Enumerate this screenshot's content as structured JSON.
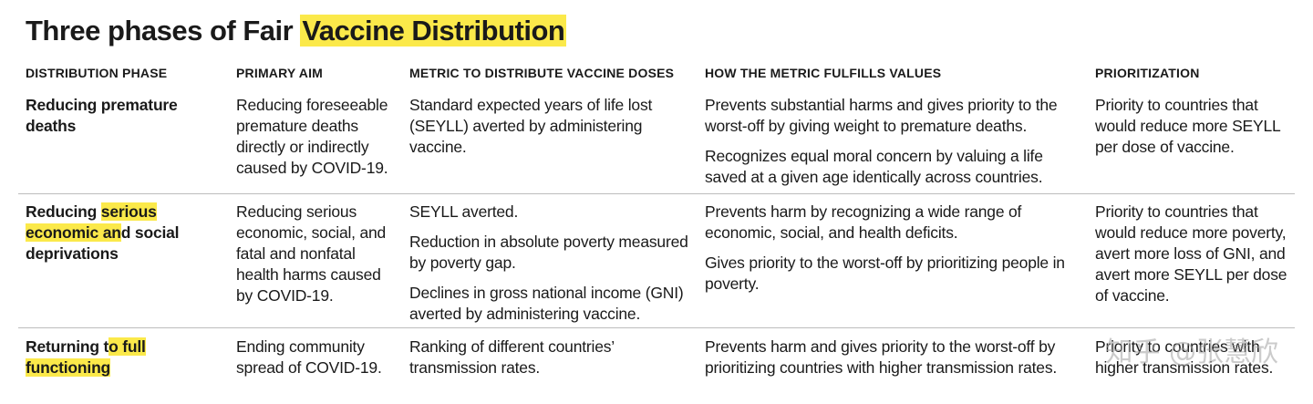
{
  "title": {
    "prefix": "Three phases of Fair ",
    "highlight": "Vaccine Distribution"
  },
  "headers": [
    "DISTRIBUTION PHASE",
    "PRIMARY AIM",
    "METRIC TO DISTRIBUTE VACCINE DOSES",
    "HOW THE METRIC FULFILLS VALUES",
    "PRIORITIZATION"
  ],
  "rows": [
    {
      "phase_parts": [
        "Reducing premature deaths"
      ],
      "aim": "Reducing foreseeable premature deaths directly or indirectly caused by COVID-19.",
      "metric": [
        "Standard expected years of life lost (SEYLL) averted by administering vaccine."
      ],
      "values": [
        "Prevents substantial harms and gives priority to the worst-off by giving weight to premature deaths.",
        "Recognizes equal moral concern by valuing a life saved at a given age identically across countries."
      ],
      "prioritization": "Priority to countries that would reduce more SEYLL per dose of vaccine."
    },
    {
      "phase_parts": [
        "Reducing ",
        "serious economic an",
        "d social deprivations"
      ],
      "aim": "Reducing serious economic, social, and fatal and nonfatal health harms caused by COVID-19.",
      "metric": [
        "SEYLL averted.",
        "Reduction in absolute poverty measured by poverty gap.",
        "Declines in gross national income (GNI) averted by administering vaccine."
      ],
      "values": [
        "Prevents harm by recognizing a wide range of economic, social, and health deficits.",
        "Gives priority to the worst-off by prioritizing people in poverty."
      ],
      "prioritization": "Priority to countries that would reduce more poverty, avert more loss of GNI, and avert more SEYLL per dose of vaccine."
    },
    {
      "phase_parts": [
        "Returning t",
        "o full functioning"
      ],
      "aim": "Ending community spread of COVID-19.",
      "metric": [
        "Ranking of different countries’ transmission rates."
      ],
      "values": [
        "Prevents harm and gives priority to the worst-off by prioritizing countries with higher transmission rates."
      ],
      "prioritization": "Priority to countries with higher transmission rates."
    }
  ],
  "watermark": "知乎 @张慧欣"
}
